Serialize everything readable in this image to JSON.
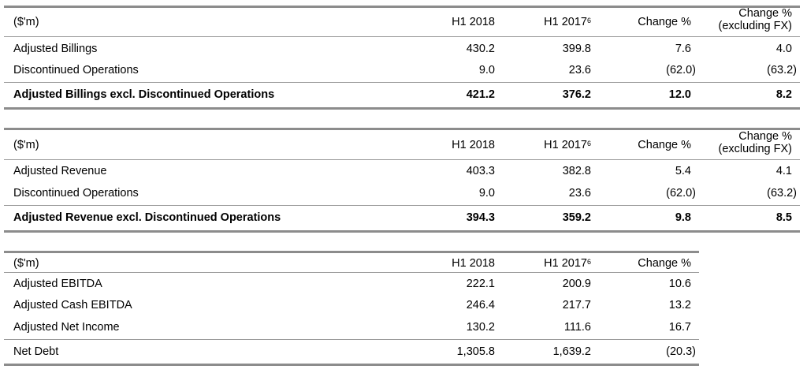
{
  "tables": [
    {
      "header": {
        "label": "($'m)",
        "h1_2018": "H1 2018",
        "h1_2017": "H1 2017",
        "h1_2017_sup": "6",
        "change": "Change %",
        "change_fx_line1": "Change %",
        "change_fx_line2": "(excluding FX)"
      },
      "rows": [
        {
          "label": "Adjusted Billings",
          "h1_2018": "430.2",
          "h1_2017": "399.8",
          "change": "7.6",
          "change_fx": "4.0"
        },
        {
          "label": "Discontinued Operations",
          "h1_2018": "9.0",
          "h1_2017": "23.6",
          "change": "(62.0)",
          "change_fx": "(63.2)"
        }
      ],
      "total": {
        "label": "Adjusted Billings excl. Discontinued Operations",
        "h1_2018": "421.2",
        "h1_2017": "376.2",
        "change": "12.0",
        "change_fx": "8.2"
      }
    },
    {
      "header": {
        "label": "($'m)",
        "h1_2018": "H1 2018",
        "h1_2017": "H1 2017",
        "h1_2017_sup": "6",
        "change": "Change %",
        "change_fx_line1": "Change %",
        "change_fx_line2": "(excluding FX)"
      },
      "rows": [
        {
          "label": "Adjusted Revenue",
          "h1_2018": "403.3",
          "h1_2017": "382.8",
          "change": "5.4",
          "change_fx": "4.1"
        },
        {
          "label": "Discontinued Operations",
          "h1_2018": "9.0",
          "h1_2017": "23.6",
          "change": "(62.0)",
          "change_fx": "(63.2)"
        }
      ],
      "total": {
        "label": "Adjusted Revenue excl. Discontinued Operations",
        "h1_2018": "394.3",
        "h1_2017": "359.2",
        "change": "9.8",
        "change_fx": "8.5"
      }
    },
    {
      "header": {
        "label": "($'m)",
        "h1_2018": "H1 2018",
        "h1_2017": "H1 2017",
        "h1_2017_sup": "6",
        "change": "Change %"
      },
      "rows": [
        {
          "label": "Adjusted EBITDA",
          "h1_2018": "222.1",
          "h1_2017": "200.9",
          "change": "10.6"
        },
        {
          "label": "Adjusted Cash EBITDA",
          "h1_2018": "246.4",
          "h1_2017": "217.7",
          "change": "13.2"
        },
        {
          "label": "Adjusted Net Income",
          "h1_2018": "130.2",
          "h1_2017": "111.6",
          "change": "16.7"
        },
        {
          "label": "Net Debt",
          "h1_2018": "1,305.8",
          "h1_2017": "1,639.2",
          "change": "(20.3)"
        }
      ]
    }
  ]
}
